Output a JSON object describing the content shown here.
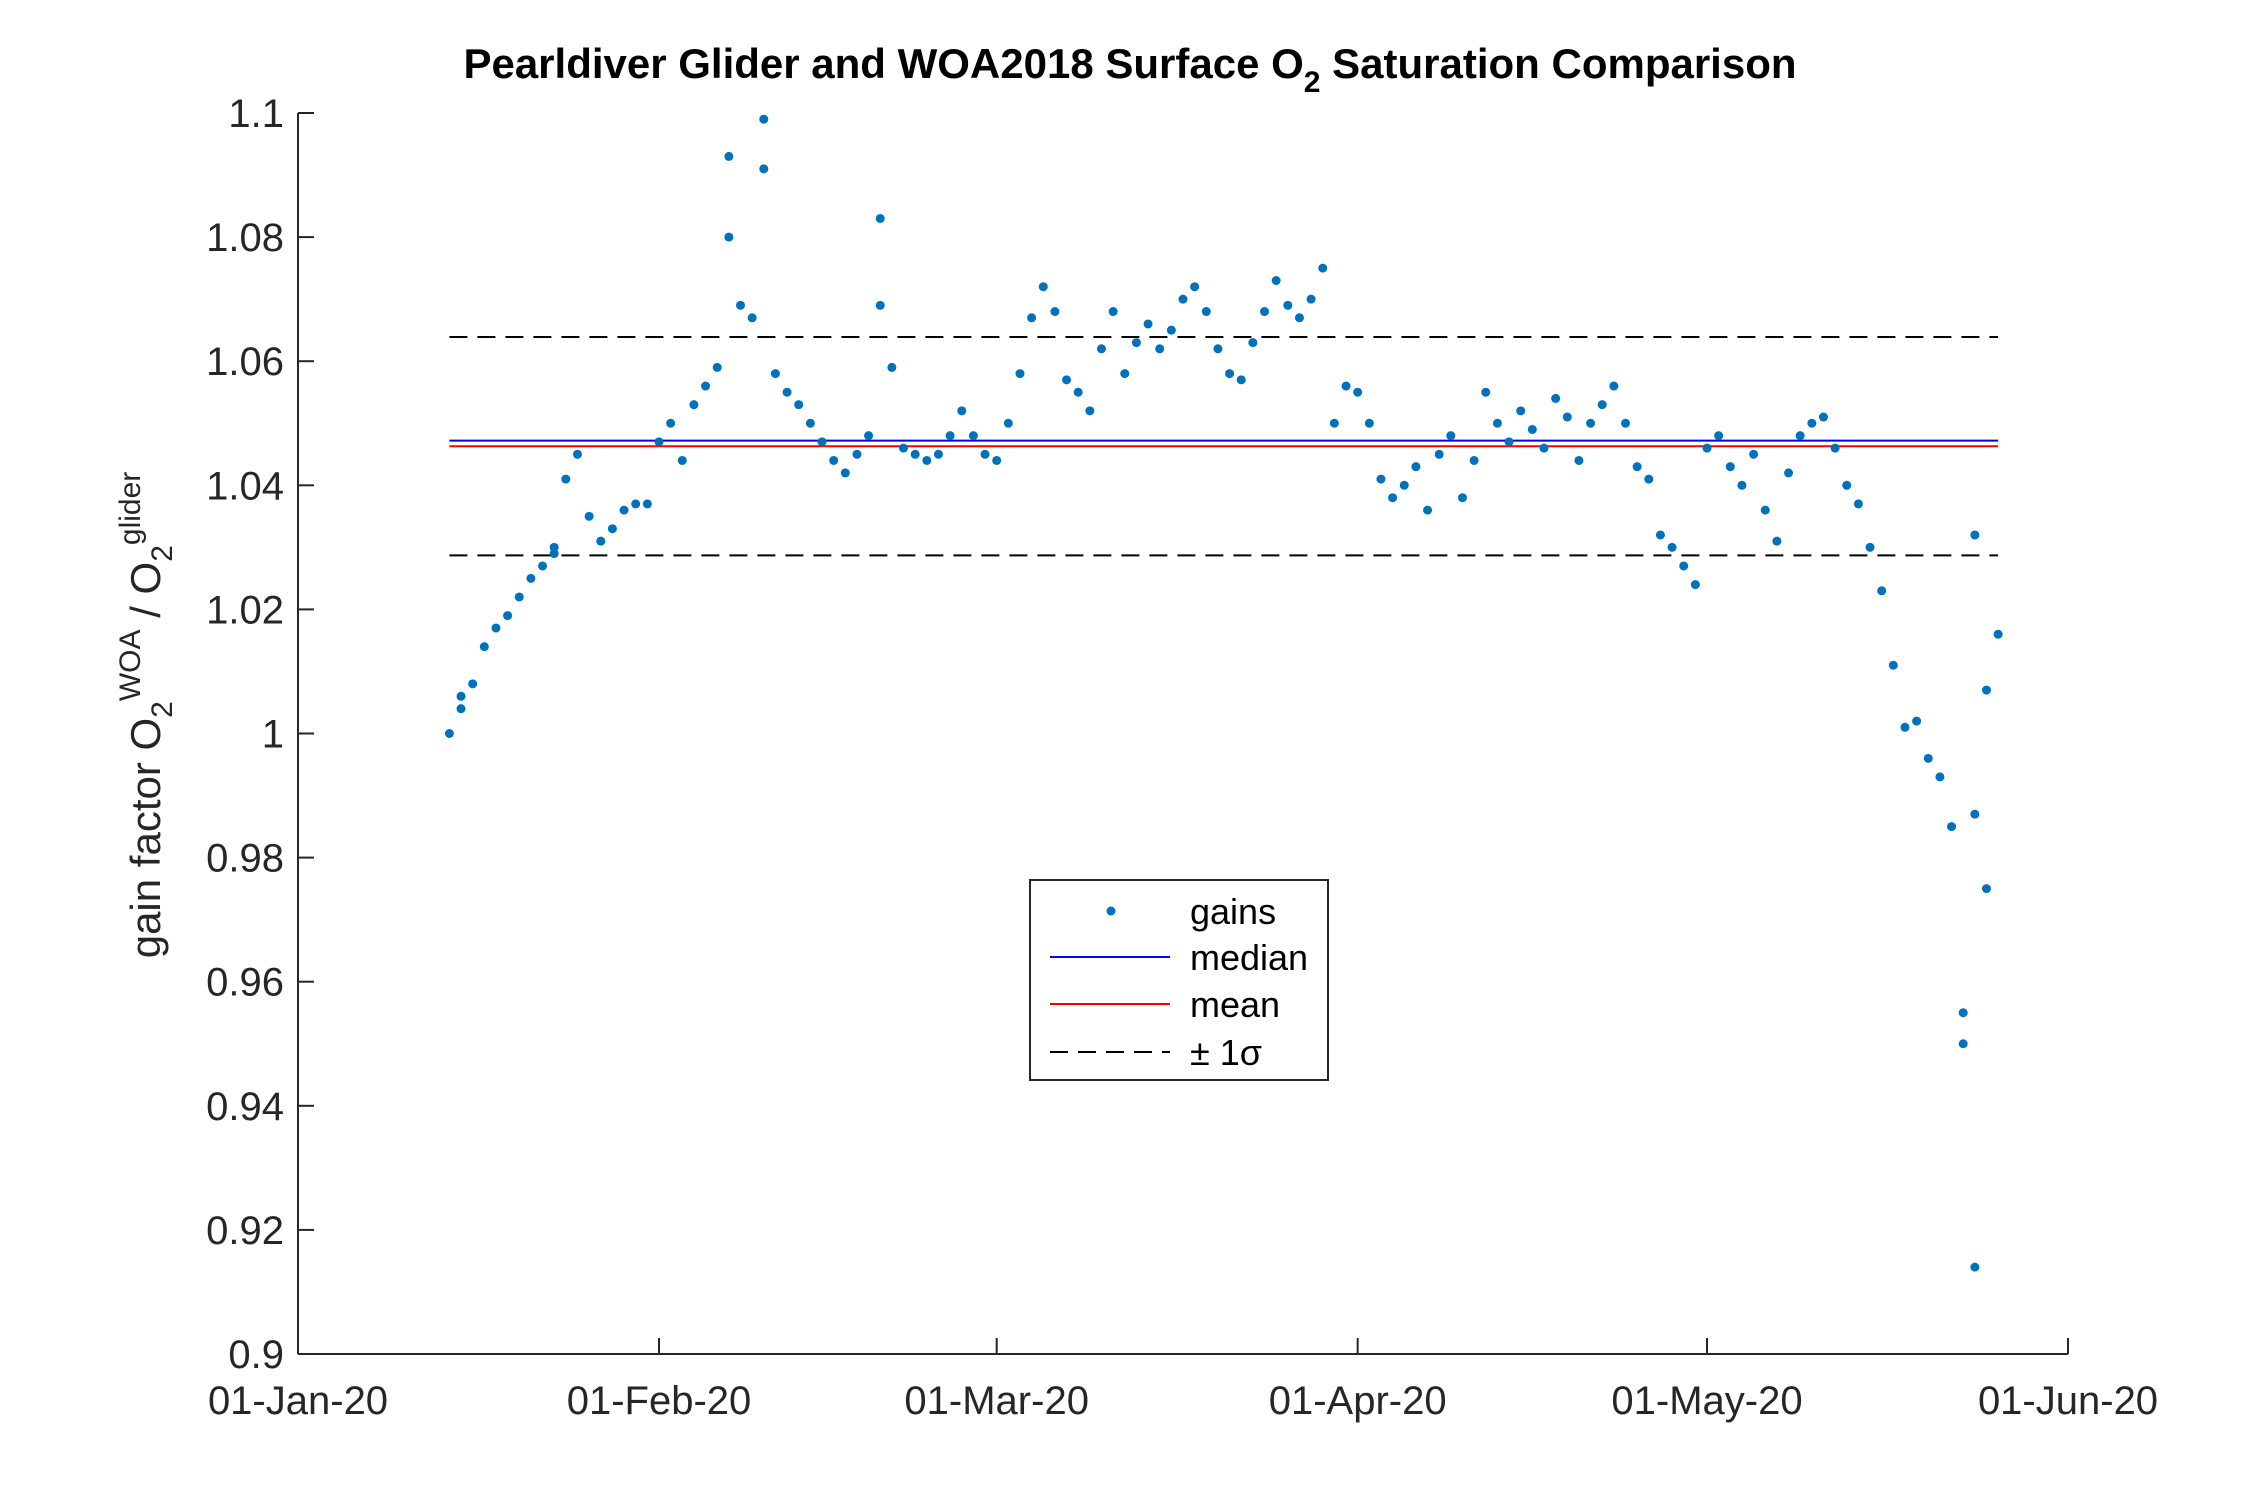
{
  "chart_data": {
    "type": "scatter",
    "title_parts": {
      "before": "Pearldiver Glider and WOA2018 Surface O",
      "sub": "2",
      "after": " Saturation Comparison"
    },
    "ylabel_parts": {
      "prefix": "gain factor O",
      "sub1": "2",
      "sup1": "WOA",
      "mid": " / O",
      "sub2": "2",
      "sup2": "glider"
    },
    "xlabel": "",
    "x_ticks": [
      {
        "label": "01-Jan-20",
        "value": "2020-01-01"
      },
      {
        "label": "01-Feb-20",
        "value": "2020-02-01"
      },
      {
        "label": "01-Mar-20",
        "value": "2020-03-01"
      },
      {
        "label": "01-Apr-20",
        "value": "2020-04-01"
      },
      {
        "label": "01-May-20",
        "value": "2020-05-01"
      },
      {
        "label": "01-Jun-20",
        "value": "2020-06-01"
      }
    ],
    "xlim": [
      "2020-01-01",
      "2020-06-01"
    ],
    "ylim": [
      0.9,
      1.1
    ],
    "y_ticks": [
      {
        "label": "0.9",
        "value": 0.9
      },
      {
        "label": "0.92",
        "value": 0.92
      },
      {
        "label": "0.94",
        "value": 0.94
      },
      {
        "label": "0.96",
        "value": 0.96
      },
      {
        "label": "0.98",
        "value": 0.98
      },
      {
        "label": "1",
        "value": 1.0
      },
      {
        "label": "1.02",
        "value": 1.02
      },
      {
        "label": "1.04",
        "value": 1.04
      },
      {
        "label": "1.06",
        "value": 1.06
      },
      {
        "label": "1.08",
        "value": 1.08
      },
      {
        "label": "1.1",
        "value": 1.1
      }
    ],
    "grid": false,
    "series": [
      {
        "name": "gains",
        "style": "dots",
        "color": "#0072BD",
        "points": [
          [
            "2020-01-14",
            1.0
          ],
          [
            "2020-01-15",
            1.004
          ],
          [
            "2020-01-15",
            1.006
          ],
          [
            "2020-01-16",
            1.008
          ],
          [
            "2020-01-17",
            1.014
          ],
          [
            "2020-01-18",
            1.017
          ],
          [
            "2020-01-19",
            1.019
          ],
          [
            "2020-01-20",
            1.022
          ],
          [
            "2020-01-21",
            1.025
          ],
          [
            "2020-01-22",
            1.027
          ],
          [
            "2020-01-23",
            1.029
          ],
          [
            "2020-01-23",
            1.03
          ],
          [
            "2020-01-24",
            1.041
          ],
          [
            "2020-01-25",
            1.045
          ],
          [
            "2020-01-26",
            1.035
          ],
          [
            "2020-01-27",
            1.031
          ],
          [
            "2020-01-28",
            1.033
          ],
          [
            "2020-01-29",
            1.036
          ],
          [
            "2020-01-30",
            1.037
          ],
          [
            "2020-01-31",
            1.037
          ],
          [
            "2020-02-01",
            1.047
          ],
          [
            "2020-02-02",
            1.05
          ],
          [
            "2020-02-03",
            1.044
          ],
          [
            "2020-02-04",
            1.053
          ],
          [
            "2020-02-05",
            1.056
          ],
          [
            "2020-02-06",
            1.059
          ],
          [
            "2020-02-07",
            1.08
          ],
          [
            "2020-02-07",
            1.093
          ],
          [
            "2020-02-08",
            1.069
          ],
          [
            "2020-02-09",
            1.067
          ],
          [
            "2020-02-10",
            1.099
          ],
          [
            "2020-02-10",
            1.091
          ],
          [
            "2020-02-11",
            1.058
          ],
          [
            "2020-02-12",
            1.055
          ],
          [
            "2020-02-13",
            1.053
          ],
          [
            "2020-02-14",
            1.05
          ],
          [
            "2020-02-15",
            1.047
          ],
          [
            "2020-02-16",
            1.044
          ],
          [
            "2020-02-17",
            1.042
          ],
          [
            "2020-02-18",
            1.045
          ],
          [
            "2020-02-19",
            1.048
          ],
          [
            "2020-02-20",
            1.083
          ],
          [
            "2020-02-20",
            1.069
          ],
          [
            "2020-02-21",
            1.059
          ],
          [
            "2020-02-22",
            1.046
          ],
          [
            "2020-02-23",
            1.045
          ],
          [
            "2020-02-24",
            1.044
          ],
          [
            "2020-02-25",
            1.045
          ],
          [
            "2020-02-26",
            1.048
          ],
          [
            "2020-02-27",
            1.052
          ],
          [
            "2020-02-28",
            1.048
          ],
          [
            "2020-02-29",
            1.045
          ],
          [
            "2020-03-01",
            1.044
          ],
          [
            "2020-03-02",
            1.05
          ],
          [
            "2020-03-03",
            1.058
          ],
          [
            "2020-03-04",
            1.067
          ],
          [
            "2020-03-05",
            1.072
          ],
          [
            "2020-03-06",
            1.068
          ],
          [
            "2020-03-07",
            1.057
          ],
          [
            "2020-03-08",
            1.055
          ],
          [
            "2020-03-09",
            1.052
          ],
          [
            "2020-03-10",
            1.062
          ],
          [
            "2020-03-11",
            1.068
          ],
          [
            "2020-03-12",
            1.058
          ],
          [
            "2020-03-13",
            1.063
          ],
          [
            "2020-03-14",
            1.066
          ],
          [
            "2020-03-15",
            1.062
          ],
          [
            "2020-03-16",
            1.065
          ],
          [
            "2020-03-17",
            1.07
          ],
          [
            "2020-03-18",
            1.072
          ],
          [
            "2020-03-19",
            1.068
          ],
          [
            "2020-03-20",
            1.062
          ],
          [
            "2020-03-21",
            1.058
          ],
          [
            "2020-03-22",
            1.057
          ],
          [
            "2020-03-23",
            1.063
          ],
          [
            "2020-03-24",
            1.068
          ],
          [
            "2020-03-25",
            1.073
          ],
          [
            "2020-03-26",
            1.069
          ],
          [
            "2020-03-27",
            1.067
          ],
          [
            "2020-03-28",
            1.07
          ],
          [
            "2020-03-29",
            1.075
          ],
          [
            "2020-03-30",
            1.05
          ],
          [
            "2020-03-31",
            1.056
          ],
          [
            "2020-04-01",
            1.055
          ],
          [
            "2020-04-02",
            1.05
          ],
          [
            "2020-04-03",
            1.041
          ],
          [
            "2020-04-04",
            1.038
          ],
          [
            "2020-04-05",
            1.04
          ],
          [
            "2020-04-06",
            1.043
          ],
          [
            "2020-04-07",
            1.036
          ],
          [
            "2020-04-08",
            1.045
          ],
          [
            "2020-04-09",
            1.048
          ],
          [
            "2020-04-10",
            1.038
          ],
          [
            "2020-04-11",
            1.044
          ],
          [
            "2020-04-12",
            1.055
          ],
          [
            "2020-04-13",
            1.05
          ],
          [
            "2020-04-14",
            1.047
          ],
          [
            "2020-04-15",
            1.052
          ],
          [
            "2020-04-16",
            1.049
          ],
          [
            "2020-04-17",
            1.046
          ],
          [
            "2020-04-18",
            1.054
          ],
          [
            "2020-04-19",
            1.051
          ],
          [
            "2020-04-20",
            1.044
          ],
          [
            "2020-04-21",
            1.05
          ],
          [
            "2020-04-22",
            1.053
          ],
          [
            "2020-04-23",
            1.056
          ],
          [
            "2020-04-24",
            1.05
          ],
          [
            "2020-04-25",
            1.043
          ],
          [
            "2020-04-26",
            1.041
          ],
          [
            "2020-04-27",
            1.032
          ],
          [
            "2020-04-28",
            1.03
          ],
          [
            "2020-04-29",
            1.027
          ],
          [
            "2020-04-30",
            1.024
          ],
          [
            "2020-05-01",
            1.046
          ],
          [
            "2020-05-02",
            1.048
          ],
          [
            "2020-05-03",
            1.043
          ],
          [
            "2020-05-04",
            1.04
          ],
          [
            "2020-05-05",
            1.045
          ],
          [
            "2020-05-06",
            1.036
          ],
          [
            "2020-05-07",
            1.031
          ],
          [
            "2020-05-08",
            1.042
          ],
          [
            "2020-05-09",
            1.048
          ],
          [
            "2020-05-10",
            1.05
          ],
          [
            "2020-05-11",
            1.051
          ],
          [
            "2020-05-12",
            1.046
          ],
          [
            "2020-05-13",
            1.04
          ],
          [
            "2020-05-14",
            1.037
          ],
          [
            "2020-05-15",
            1.03
          ],
          [
            "2020-05-16",
            1.023
          ],
          [
            "2020-05-17",
            1.011
          ],
          [
            "2020-05-18",
            1.001
          ],
          [
            "2020-05-19",
            1.002
          ],
          [
            "2020-05-20",
            0.996
          ],
          [
            "2020-05-21",
            0.993
          ],
          [
            "2020-05-22",
            0.985
          ],
          [
            "2020-05-23",
            0.955
          ],
          [
            "2020-05-23",
            0.95
          ],
          [
            "2020-05-24",
            0.914
          ],
          [
            "2020-05-24",
            0.987
          ],
          [
            "2020-05-25",
            0.975
          ],
          [
            "2020-05-25",
            1.007
          ],
          [
            "2020-05-26",
            1.016
          ],
          [
            "2020-05-24",
            1.032
          ]
        ]
      },
      {
        "name": "median",
        "style": "line",
        "color": "#0000FF",
        "value": 1.0472
      },
      {
        "name": "mean",
        "style": "line",
        "color": "#FF0000",
        "value": 1.0463
      },
      {
        "name": "± 1σ",
        "style": "dashed",
        "color": "#000000",
        "values": [
          1.0287,
          1.0639
        ],
        "x_range": [
          "2020-01-14",
          "2020-05-26"
        ]
      }
    ],
    "legend": {
      "position": "center",
      "entries": [
        {
          "label": "gains",
          "style": "dots",
          "color": "#0072BD"
        },
        {
          "label": "median",
          "style": "line",
          "color": "#0000FF"
        },
        {
          "label": "mean",
          "style": "line",
          "color": "#FF0000"
        },
        {
          "label": "± 1σ",
          "style": "dashed",
          "color": "#000000"
        }
      ]
    }
  }
}
